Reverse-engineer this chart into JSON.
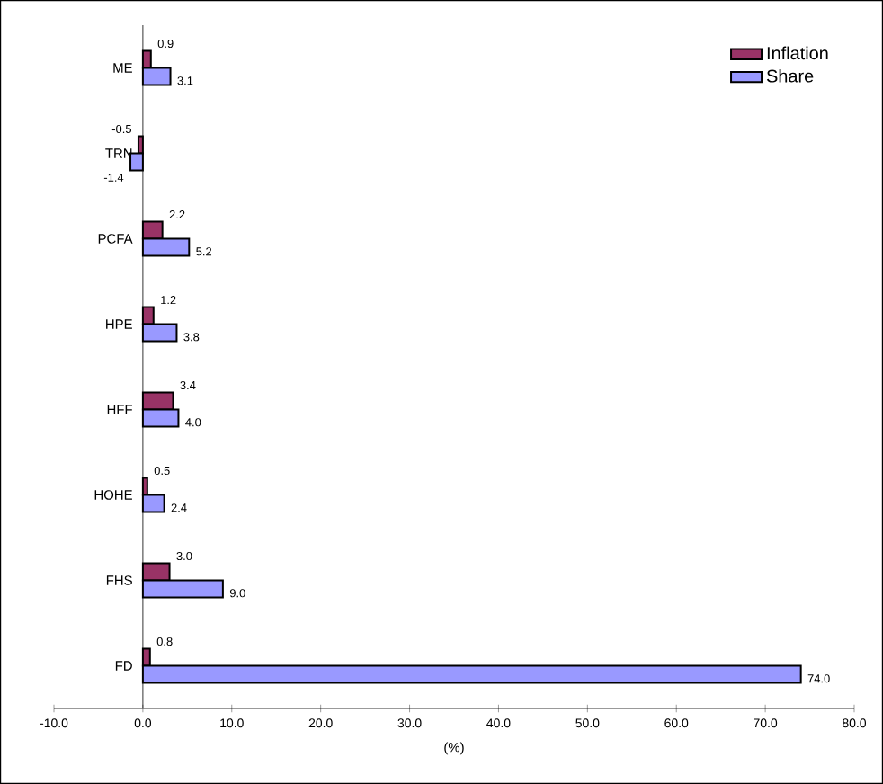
{
  "chart_data": {
    "type": "bar",
    "orientation": "horizontal",
    "xlabel": "(%)",
    "categories": [
      "ME",
      "TRN",
      "PCFA",
      "HPE",
      "HFF",
      "HOHE",
      "FHS",
      "FD"
    ],
    "series": [
      {
        "name": "Inflation",
        "color": "#993366",
        "values": [
          0.9,
          -0.5,
          2.2,
          1.2,
          3.4,
          0.5,
          3.0,
          0.8
        ],
        "value_labels": [
          "0.9",
          "-0.5",
          "2.2",
          "1.2",
          "3.4",
          "0.5",
          "3.0",
          "0.8"
        ]
      },
      {
        "name": "Share",
        "color": "#9999ff",
        "values": [
          3.1,
          -1.4,
          5.2,
          3.8,
          4.0,
          2.4,
          9.0,
          74.0
        ],
        "value_labels": [
          "3.1",
          "-1.4",
          "5.2",
          "3.8",
          "4.0",
          "2.4",
          "9.0",
          "74.0"
        ]
      }
    ],
    "xlim": [
      -10,
      80
    ],
    "xticks": [
      {
        "value": -10,
        "label": "-10.0"
      },
      {
        "value": 0,
        "label": "0.0"
      },
      {
        "value": 10,
        "label": "10.0"
      },
      {
        "value": 20,
        "label": "20.0"
      },
      {
        "value": 30,
        "label": "30.0"
      },
      {
        "value": 40,
        "label": "40.0"
      },
      {
        "value": 50,
        "label": "50.0"
      },
      {
        "value": 60,
        "label": "60.0"
      },
      {
        "value": 70,
        "label": "70.0"
      },
      {
        "value": 80,
        "label": "80.0"
      }
    ],
    "grid": false,
    "legend": "top right"
  }
}
